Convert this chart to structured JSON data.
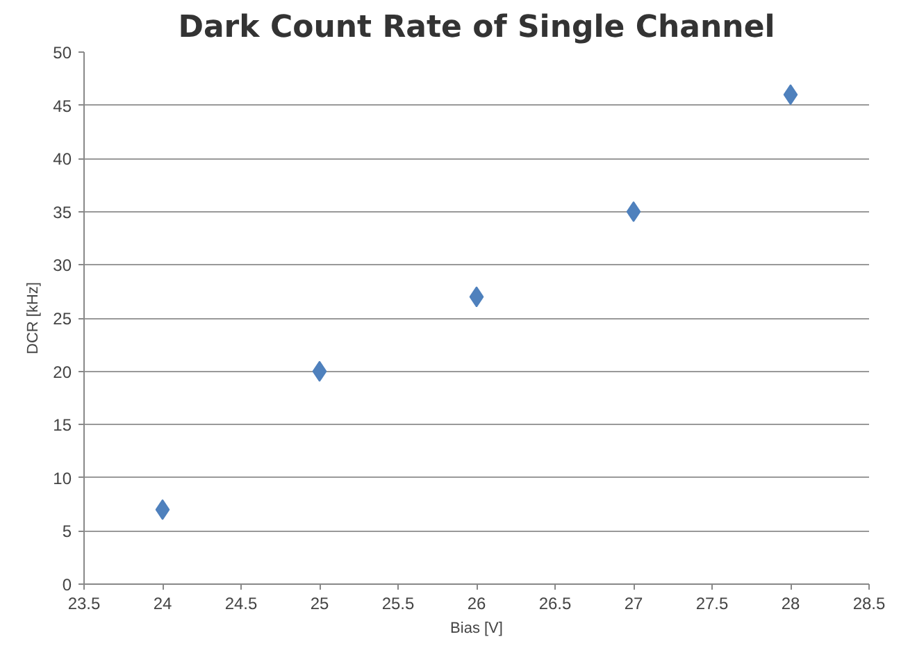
{
  "chart_data": {
    "type": "scatter",
    "title": "Dark Count Rate of Single Channel",
    "xlabel": "Bias [V]",
    "ylabel": "DCR [kHz]",
    "x": [
      24,
      25,
      26,
      27,
      28
    ],
    "series": [
      {
        "color": "#4f81bd",
        "values": [
          7,
          20,
          27,
          35,
          46
        ]
      }
    ],
    "xlim": [
      23.5,
      28.5
    ],
    "xticks": [
      23.5,
      24,
      24.5,
      25,
      25.5,
      26,
      26.5,
      27,
      27.5,
      28,
      28.5
    ],
    "ylim": [
      0,
      50
    ],
    "yticks": [
      0,
      5,
      10,
      15,
      20,
      25,
      30,
      35,
      40,
      45,
      50
    ],
    "grid": "y",
    "marker": "diamond"
  }
}
